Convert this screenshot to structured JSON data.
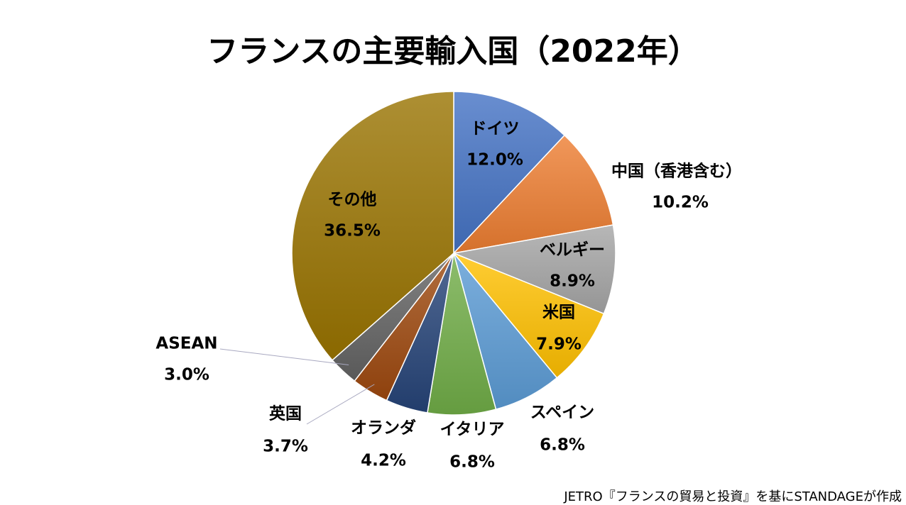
{
  "chart_data": {
    "type": "pie",
    "title": "フランスの主要輸入国（2022年）",
    "start": "top",
    "direction": "clockwise",
    "slices": [
      {
        "label": "ドイツ",
        "value": 12.0,
        "value_label": "12.0%",
        "color": "#4472C4"
      },
      {
        "label": "中国（香港含む）",
        "value": 10.2,
        "value_label": "10.2%",
        "color": "#ED7D31"
      },
      {
        "label": "ベルギー",
        "value": 8.9,
        "value_label": "8.9%",
        "color": "#A5A5A5"
      },
      {
        "label": "米国",
        "value": 7.9,
        "value_label": "7.9%",
        "color": "#FFC000"
      },
      {
        "label": "スペイン",
        "value": 6.8,
        "value_label": "6.8%",
        "color": "#5B9BD5"
      },
      {
        "label": "イタリア",
        "value": 6.8,
        "value_label": "6.8%",
        "color": "#70AD47"
      },
      {
        "label": "オランダ",
        "value": 4.2,
        "value_label": "4.2%",
        "color": "#264478"
      },
      {
        "label": "英国",
        "value": 3.7,
        "value_label": "3.7%",
        "color": "#9E480E"
      },
      {
        "label": "ASEAN",
        "value": 3.0,
        "value_label": "3.0%",
        "color": "#636363"
      },
      {
        "label": "その他",
        "value": 36.5,
        "value_label": "36.5%",
        "color": "#997300"
      }
    ],
    "legend": "none"
  },
  "source": "JETRO『フランスの貿易と投資』を基にSTANDAGEが作成"
}
